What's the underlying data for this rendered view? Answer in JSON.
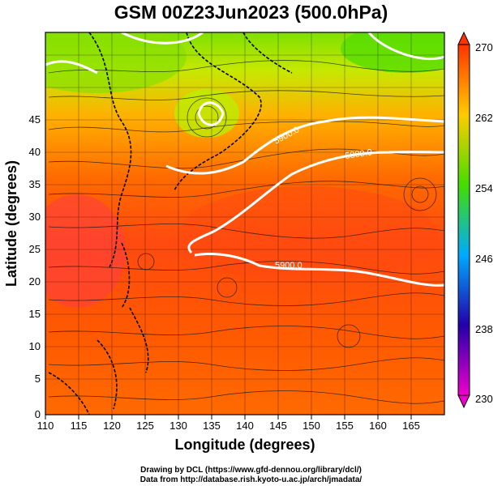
{
  "title": "GSM 00Z23Jun2023 (500.0hPa)",
  "x_axis": {
    "label": "Longitude (degrees)",
    "ticks": [
      "110",
      "115",
      "120",
      "125",
      "130",
      "135",
      "140",
      "145",
      "150",
      "155",
      "160",
      "165"
    ]
  },
  "y_axis": {
    "label": "Latitude  (degrees)",
    "ticks": [
      "0",
      "5",
      "10",
      "15",
      "20",
      "25",
      "30",
      "35",
      "40",
      "45"
    ]
  },
  "colorbar": {
    "ticks": [
      "230",
      "238",
      "246",
      "254",
      "262",
      "270"
    ],
    "colors": [
      "#ee00cc",
      "#2200aa",
      "#00aaff",
      "#44dd00",
      "#ffcc00",
      "#ff3300"
    ]
  },
  "contours": [
    {
      "label": "5900.0"
    },
    {
      "label": "5800.0"
    },
    {
      "label": "5900.0"
    }
  ],
  "credits": {
    "line1": "Drawing by DCL (https://www.gfd-dennou.org/library/dcl/)",
    "line2": "Data from http://database.rish.kyoto-u.ac.jp/arch/jmadata/"
  },
  "colors": {
    "warm": "#ff4400",
    "mid": "#ffaa00",
    "cool": "#66dd00",
    "contour": "#ffffff",
    "coast": "#000000"
  }
}
